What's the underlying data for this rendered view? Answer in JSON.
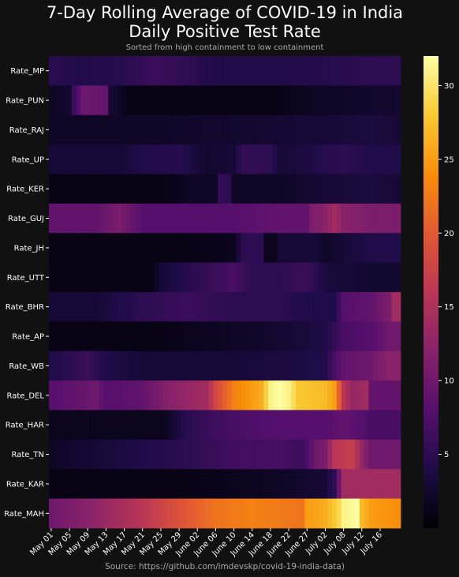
{
  "chart_data": {
    "type": "heatmap",
    "title_line1": "7-Day Rolling Average of COVID-19 in India",
    "title_line2": "Daily Positive Test Rate",
    "subtitle": "Sorted from high containment to low containment",
    "source": "Source: https://github.com/imdevskp/covid-19-india-data)",
    "rows": [
      "Rate_MP",
      "Rate_PUN",
      "Rate_RAJ",
      "Rate_UP",
      "Rate_KER",
      "Rate_GUJ",
      "Rate_JH",
      "Rate_UTT",
      "Rate_BHR",
      "Rate_AP",
      "Rate_WB",
      "Rate_DEL",
      "Rate_HAR",
      "Rate_TN",
      "Rate_KAR",
      "Rate_MAH"
    ],
    "x_tick_labels": [
      "May 01",
      "May 05",
      "May 09",
      "May 13",
      "May 17",
      "May 21",
      "May 25",
      "May 29",
      "June 02",
      "June 06",
      "June 10",
      "June 14",
      "June 18",
      "June 22",
      "June 27",
      "July 02",
      "July 08",
      "July 12",
      "July 16"
    ],
    "colorbar_ticks": [
      5,
      10,
      15,
      20,
      25,
      30
    ],
    "color_range": [
      0,
      32
    ],
    "colormap": [
      "#000004",
      "#1f0c48",
      "#550f6d",
      "#88226a",
      "#ba3655",
      "#e35933",
      "#f98e09",
      "#f9c932",
      "#fcffa4"
    ],
    "row_profiles": [
      [
        [
          0,
          5
        ],
        [
          5,
          4
        ],
        [
          15,
          4.5
        ],
        [
          22,
          6
        ],
        [
          28,
          5.5
        ],
        [
          36,
          4
        ],
        [
          50,
          4
        ],
        [
          60,
          4.5
        ],
        [
          70,
          5
        ],
        [
          76,
          5
        ]
      ],
      [
        [
          0,
          2
        ],
        [
          4,
          2.5
        ],
        [
          5,
          6
        ],
        [
          7,
          10
        ],
        [
          12,
          9
        ],
        [
          13,
          3
        ],
        [
          17,
          1
        ],
        [
          50,
          1
        ],
        [
          58,
          2
        ],
        [
          76,
          2.5
        ]
      ],
      [
        [
          0,
          2
        ],
        [
          20,
          2
        ],
        [
          40,
          2.5
        ],
        [
          60,
          3
        ],
        [
          70,
          3.5
        ],
        [
          76,
          3
        ]
      ],
      [
        [
          0,
          3
        ],
        [
          15,
          3
        ],
        [
          20,
          4
        ],
        [
          28,
          4.5
        ],
        [
          34,
          2.5
        ],
        [
          40,
          3
        ],
        [
          42,
          5.5
        ],
        [
          48,
          5
        ],
        [
          50,
          3
        ],
        [
          56,
          3.5
        ],
        [
          60,
          4.5
        ],
        [
          64,
          5
        ],
        [
          70,
          4
        ],
        [
          76,
          4
        ]
      ],
      [
        [
          0,
          1
        ],
        [
          25,
          1
        ],
        [
          30,
          2
        ],
        [
          36,
          2
        ],
        [
          37,
          5.5
        ],
        [
          39,
          5
        ],
        [
          40,
          2
        ],
        [
          50,
          2
        ],
        [
          56,
          2.5
        ],
        [
          60,
          3
        ],
        [
          70,
          3.5
        ],
        [
          76,
          3
        ]
      ],
      [
        [
          0,
          9
        ],
        [
          10,
          9
        ],
        [
          15,
          11
        ],
        [
          20,
          8
        ],
        [
          30,
          8
        ],
        [
          40,
          8
        ],
        [
          50,
          9
        ],
        [
          56,
          9
        ],
        [
          57,
          11
        ],
        [
          60,
          12
        ],
        [
          62,
          14
        ],
        [
          64,
          12
        ],
        [
          70,
          11
        ],
        [
          76,
          11
        ]
      ],
      [
        [
          0,
          1
        ],
        [
          30,
          1
        ],
        [
          40,
          1.5
        ],
        [
          42,
          5
        ],
        [
          46,
          5
        ],
        [
          47,
          1.5
        ],
        [
          49,
          1.5
        ],
        [
          50,
          3
        ],
        [
          58,
          3
        ],
        [
          60,
          2
        ],
        [
          64,
          3
        ],
        [
          70,
          4
        ],
        [
          76,
          4
        ]
      ],
      [
        [
          0,
          1
        ],
        [
          22,
          1
        ],
        [
          24,
          3
        ],
        [
          28,
          4
        ],
        [
          32,
          5
        ],
        [
          36,
          6
        ],
        [
          40,
          7
        ],
        [
          44,
          5
        ],
        [
          50,
          5
        ],
        [
          56,
          6
        ],
        [
          60,
          3.5
        ],
        [
          64,
          3
        ],
        [
          70,
          2.5
        ],
        [
          76,
          2.5
        ]
      ],
      [
        [
          0,
          3
        ],
        [
          10,
          3
        ],
        [
          15,
          4
        ],
        [
          20,
          5
        ],
        [
          30,
          6
        ],
        [
          40,
          5
        ],
        [
          50,
          5
        ],
        [
          56,
          4
        ],
        [
          62,
          4
        ],
        [
          64,
          8
        ],
        [
          70,
          9
        ],
        [
          74,
          11
        ],
        [
          75,
          14
        ],
        [
          76,
          14
        ]
      ],
      [
        [
          0,
          1
        ],
        [
          25,
          1
        ],
        [
          30,
          1.5
        ],
        [
          40,
          2
        ],
        [
          50,
          2.5
        ],
        [
          60,
          4
        ],
        [
          64,
          7
        ],
        [
          70,
          8
        ],
        [
          74,
          10
        ],
        [
          76,
          10
        ]
      ],
      [
        [
          0,
          4
        ],
        [
          4,
          5
        ],
        [
          8,
          6
        ],
        [
          12,
          4
        ],
        [
          20,
          3
        ],
        [
          30,
          3
        ],
        [
          40,
          3
        ],
        [
          50,
          3.5
        ],
        [
          60,
          4
        ],
        [
          62,
          7
        ],
        [
          64,
          9
        ],
        [
          70,
          10
        ],
        [
          74,
          12
        ],
        [
          76,
          12
        ]
      ],
      [
        [
          0,
          8
        ],
        [
          5,
          9
        ],
        [
          10,
          10
        ],
        [
          12,
          8
        ],
        [
          20,
          9
        ],
        [
          26,
          12
        ],
        [
          34,
          14
        ],
        [
          36,
          18
        ],
        [
          40,
          23
        ],
        [
          46,
          26
        ],
        [
          48,
          31
        ],
        [
          50,
          32
        ],
        [
          52,
          31
        ],
        [
          54,
          28
        ],
        [
          60,
          27
        ],
        [
          62,
          25
        ],
        [
          64,
          16
        ],
        [
          66,
          13
        ],
        [
          69,
          14
        ],
        [
          70,
          9
        ],
        [
          76,
          9
        ]
      ],
      [
        [
          0,
          1.5
        ],
        [
          25,
          1.5
        ],
        [
          30,
          5
        ],
        [
          40,
          7
        ],
        [
          50,
          8
        ],
        [
          60,
          8
        ],
        [
          64,
          9
        ],
        [
          68,
          8
        ],
        [
          70,
          7
        ],
        [
          76,
          7
        ]
      ],
      [
        [
          0,
          2
        ],
        [
          10,
          3
        ],
        [
          20,
          4
        ],
        [
          30,
          5
        ],
        [
          40,
          6.5
        ],
        [
          50,
          7
        ],
        [
          55,
          6
        ],
        [
          58,
          10
        ],
        [
          60,
          11
        ],
        [
          62,
          16
        ],
        [
          66,
          17
        ],
        [
          68,
          13
        ],
        [
          70,
          10
        ],
        [
          76,
          10
        ]
      ],
      [
        [
          0,
          1
        ],
        [
          30,
          1
        ],
        [
          40,
          1.5
        ],
        [
          50,
          2
        ],
        [
          56,
          2.5
        ],
        [
          60,
          3
        ],
        [
          62,
          5
        ],
        [
          64,
          14
        ],
        [
          70,
          14
        ],
        [
          76,
          14
        ]
      ],
      [
        [
          0,
          10
        ],
        [
          8,
          12
        ],
        [
          14,
          14
        ],
        [
          20,
          16
        ],
        [
          30,
          20
        ],
        [
          36,
          22
        ],
        [
          44,
          23
        ],
        [
          55,
          22
        ],
        [
          56,
          25
        ],
        [
          60,
          26
        ],
        [
          63,
          29
        ],
        [
          64,
          31
        ],
        [
          67,
          32
        ],
        [
          68,
          27
        ],
        [
          70,
          25
        ],
        [
          76,
          24
        ]
      ]
    ]
  }
}
